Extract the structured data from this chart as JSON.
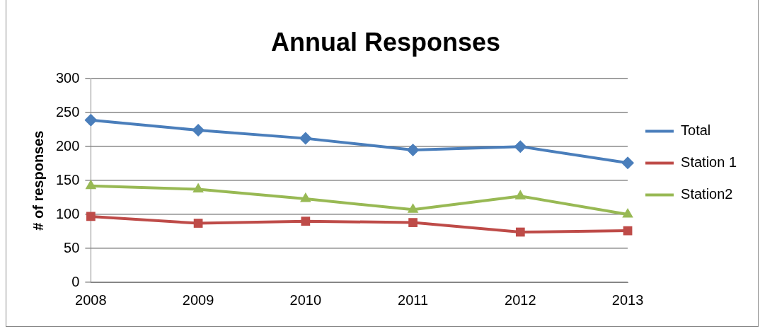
{
  "chart_data": {
    "type": "line",
    "title": "Annual Responses",
    "ylabel": "# of responses",
    "categories": [
      "2008",
      "2009",
      "2010",
      "2011",
      "2012",
      "2013"
    ],
    "series": [
      {
        "name": "Total",
        "color": "#4a7ebb",
        "values": [
          239,
          224,
          212,
          195,
          200,
          176
        ],
        "marker": "diamond"
      },
      {
        "name": "Station 1",
        "color": "#be4b48",
        "values": [
          97,
          87,
          90,
          88,
          74,
          76
        ],
        "marker": "square"
      },
      {
        "name": "Station2",
        "color": "#98b954",
        "values": [
          142,
          137,
          123,
          107,
          127,
          100
        ],
        "marker": "triangle"
      }
    ],
    "ylim": [
      0,
      300
    ],
    "yticks": [
      0,
      50,
      100,
      150,
      200,
      250,
      300
    ],
    "grid": "y",
    "legend": "right",
    "line_style": "solid"
  }
}
